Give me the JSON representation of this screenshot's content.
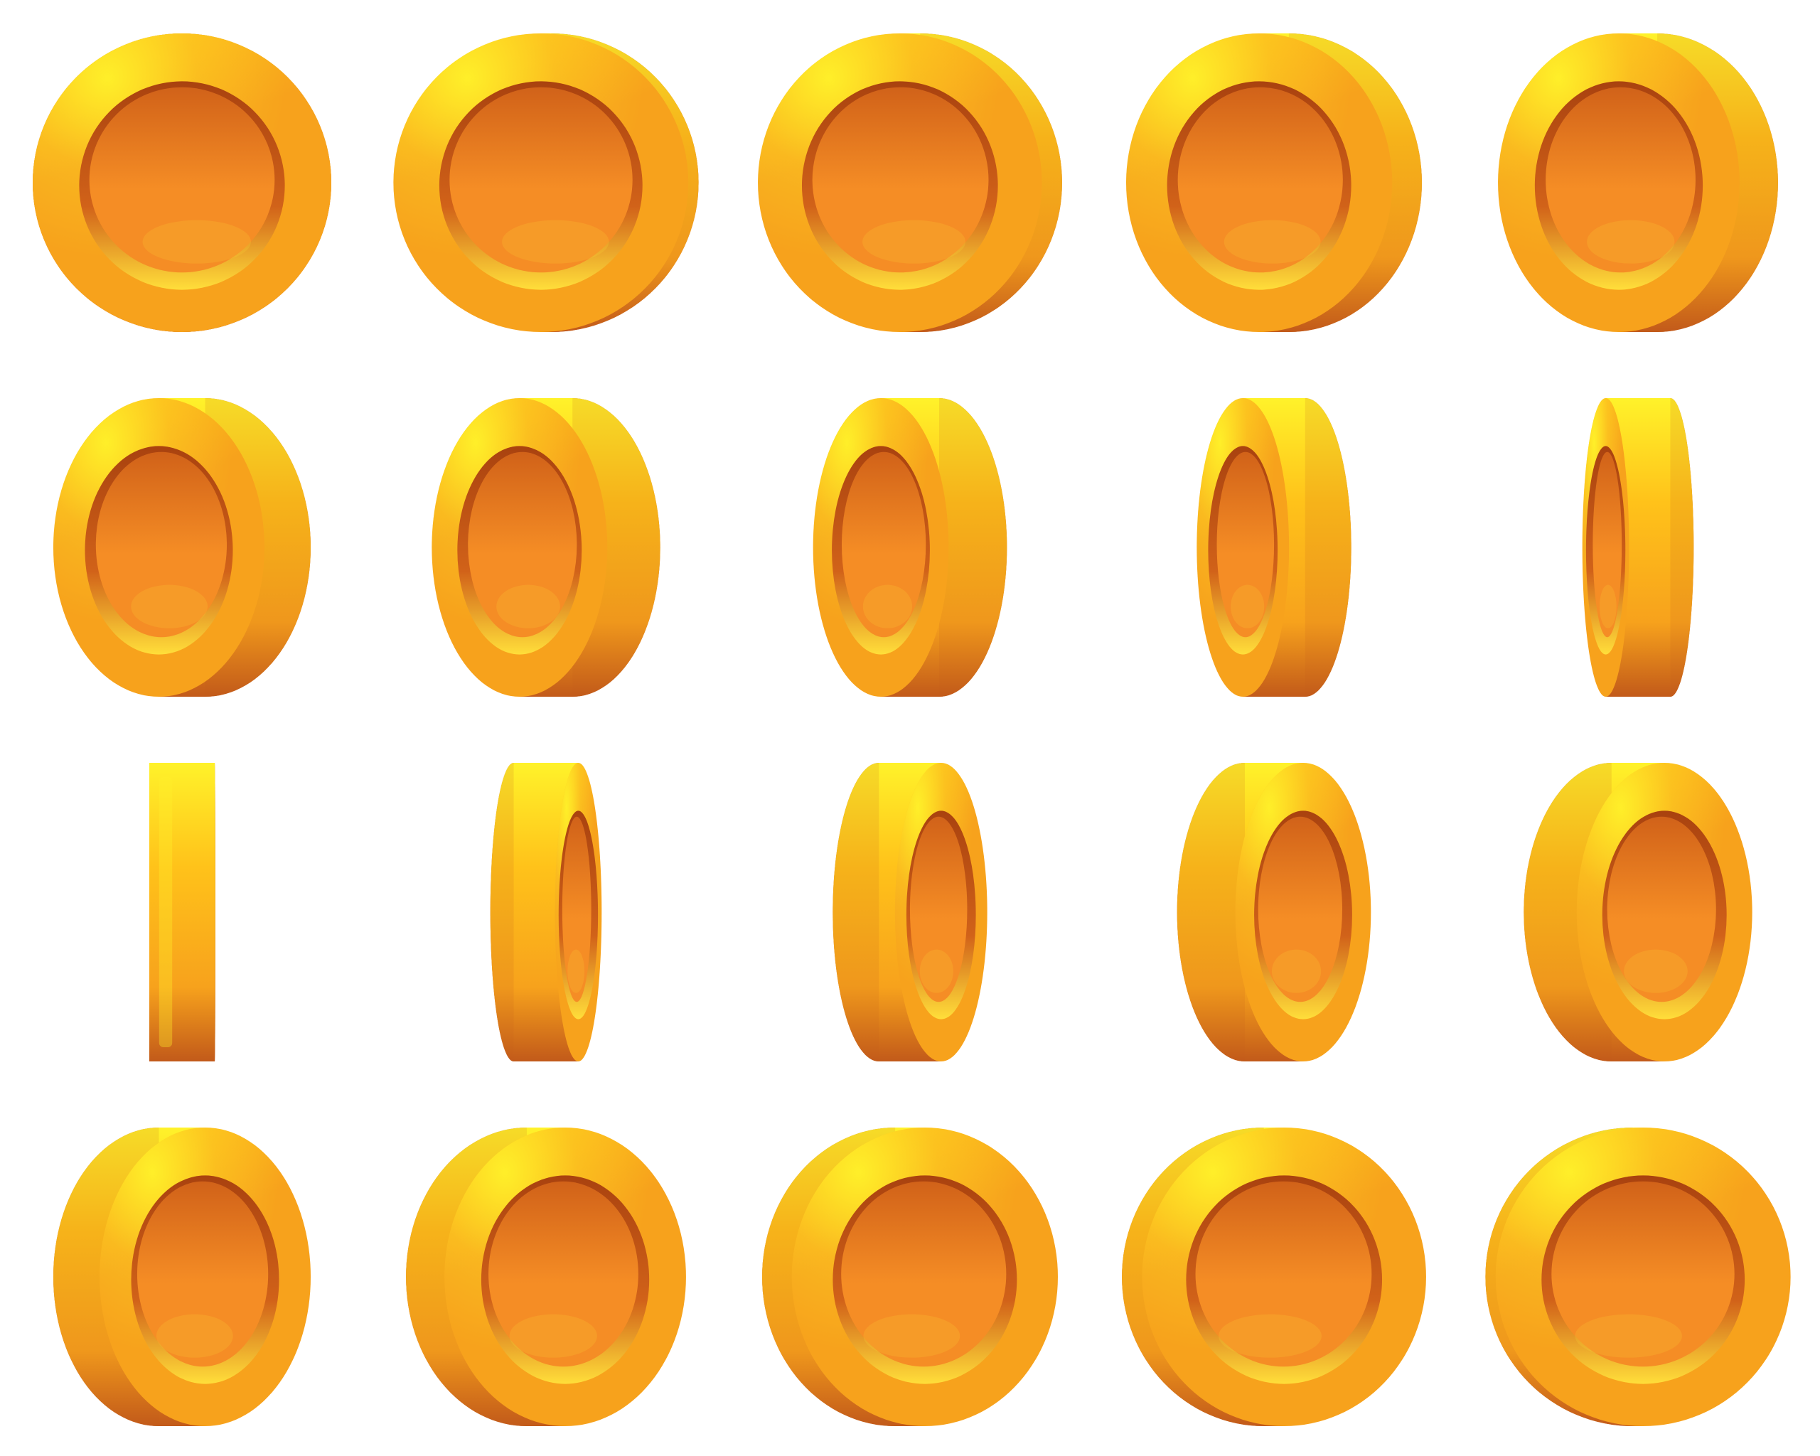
{
  "sprite_sheet": {
    "name": "coin-spin-animation",
    "rows": 4,
    "columns": 5,
    "frame_count": 20,
    "background": "#ffffff",
    "colors": {
      "rim_highlight": "#fff22a",
      "rim_light": "#ffc21a",
      "rim_mid": "#f7a21c",
      "rim_shadow": "#c25a1a",
      "face": "#f58d25",
      "face_dark": "#d16219",
      "inner_shadow": "#a9420f",
      "inner_highlight": "#ffde3a"
    },
    "frames": [
      {
        "frame": 1,
        "rotation_deg": 0
      },
      {
        "frame": 2,
        "rotation_deg": 9
      },
      {
        "frame": 3,
        "rotation_deg": 18
      },
      {
        "frame": 4,
        "rotation_deg": 27
      },
      {
        "frame": 5,
        "rotation_deg": 36
      },
      {
        "frame": 6,
        "rotation_deg": 45
      },
      {
        "frame": 7,
        "rotation_deg": 54
      },
      {
        "frame": 8,
        "rotation_deg": 63
      },
      {
        "frame": 9,
        "rotation_deg": 72
      },
      {
        "frame": 10,
        "rotation_deg": 81
      },
      {
        "frame": 11,
        "rotation_deg": 90
      },
      {
        "frame": 12,
        "rotation_deg": 99
      },
      {
        "frame": 13,
        "rotation_deg": 108
      },
      {
        "frame": 14,
        "rotation_deg": 117
      },
      {
        "frame": 15,
        "rotation_deg": 126
      },
      {
        "frame": 16,
        "rotation_deg": 135
      },
      {
        "frame": 17,
        "rotation_deg": 144
      },
      {
        "frame": 18,
        "rotation_deg": 153
      },
      {
        "frame": 19,
        "rotation_deg": 162
      },
      {
        "frame": 20,
        "rotation_deg": 171
      }
    ]
  }
}
